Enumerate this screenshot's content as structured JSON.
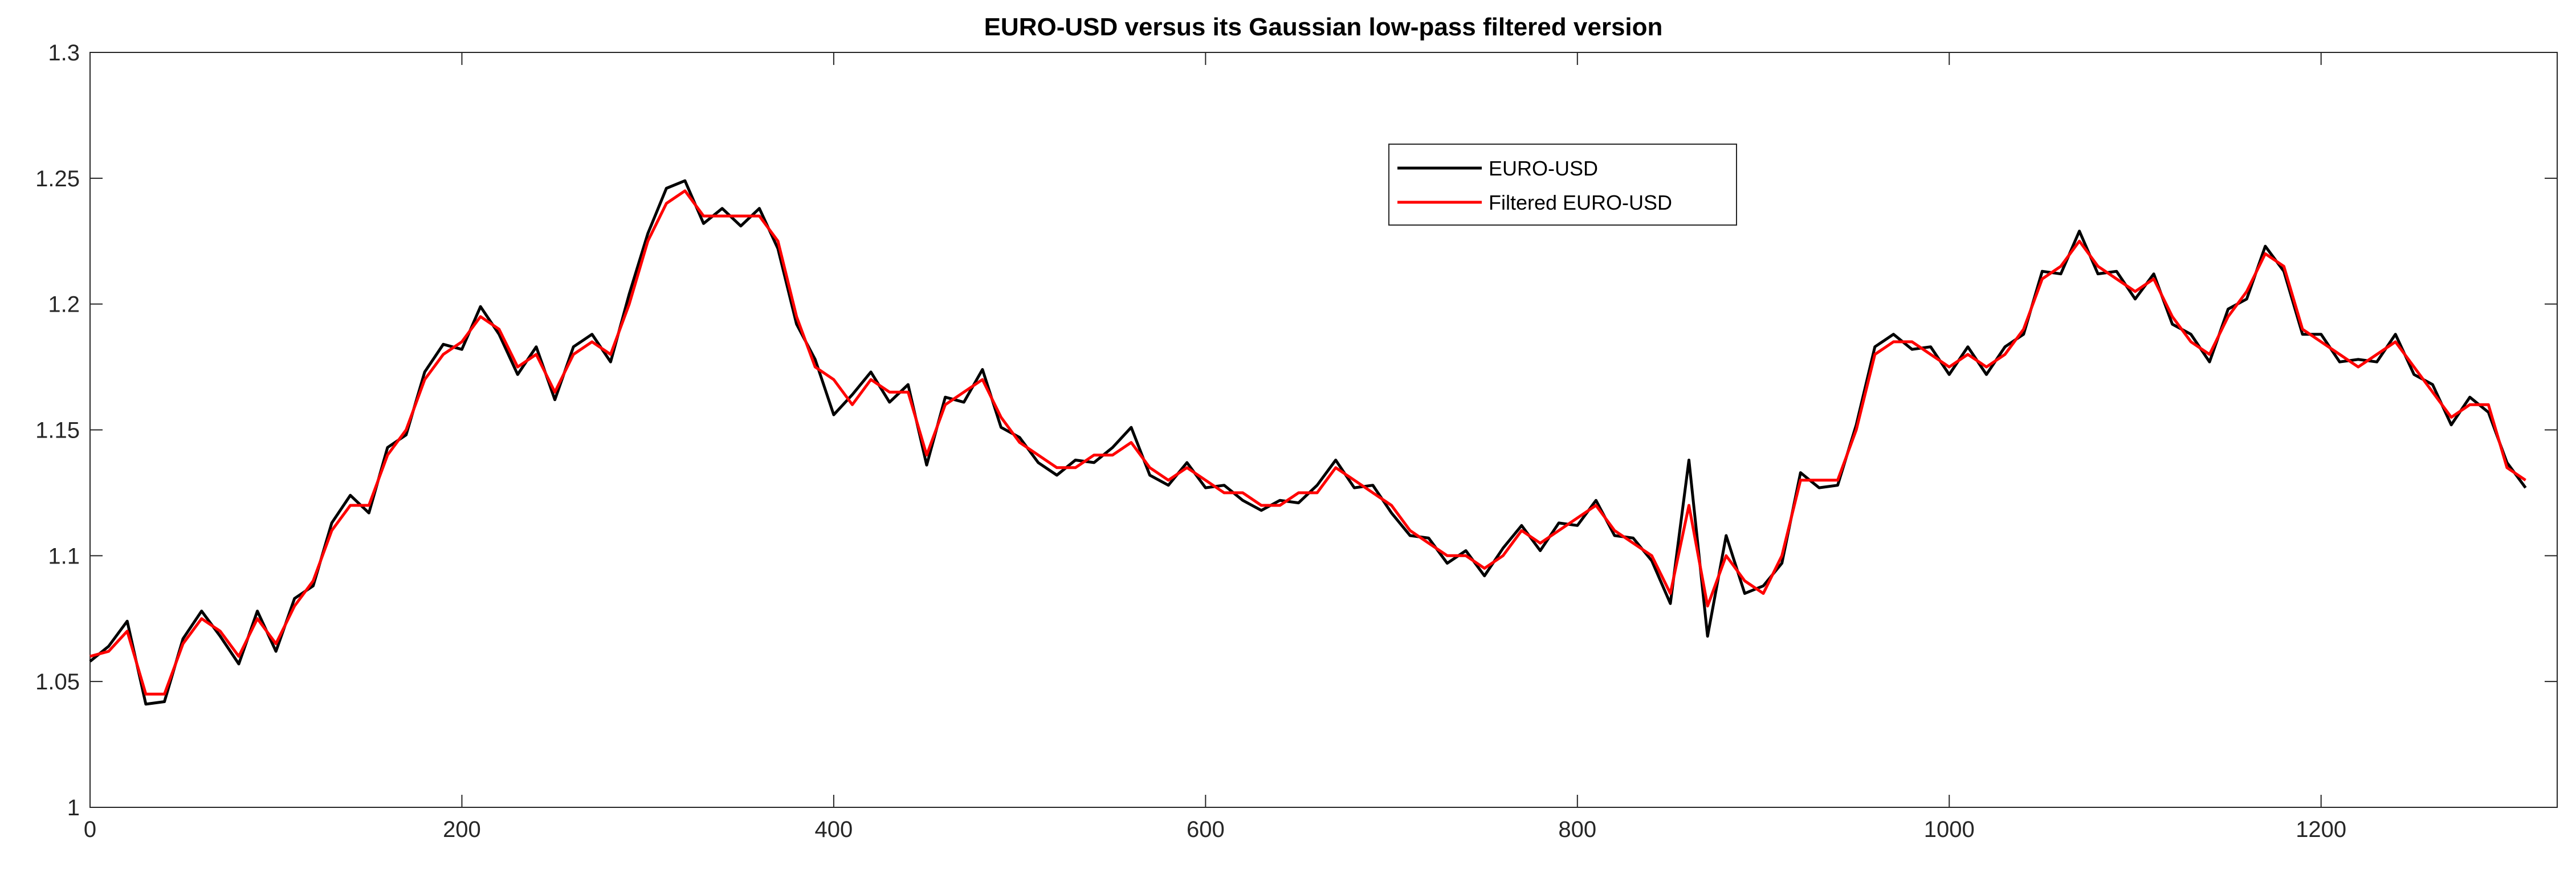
{
  "chart_data": {
    "type": "line",
    "title": "EURO-USD versus its Gaussian low-pass filtered version",
    "x": [
      0,
      10,
      20,
      30,
      40,
      50,
      60,
      70,
      80,
      90,
      100,
      110,
      120,
      130,
      140,
      150,
      160,
      170,
      180,
      190,
      200,
      210,
      220,
      230,
      240,
      250,
      260,
      270,
      280,
      290,
      300,
      310,
      320,
      330,
      340,
      350,
      360,
      370,
      380,
      390,
      400,
      410,
      420,
      430,
      440,
      450,
      460,
      470,
      480,
      490,
      500,
      510,
      520,
      530,
      540,
      550,
      560,
      570,
      580,
      590,
      600,
      610,
      620,
      630,
      640,
      650,
      660,
      670,
      680,
      690,
      700,
      710,
      720,
      730,
      740,
      750,
      760,
      770,
      780,
      790,
      800,
      810,
      820,
      830,
      840,
      850,
      860,
      870,
      880,
      890,
      900,
      910,
      920,
      930,
      940,
      950,
      960,
      970,
      980,
      990,
      1000,
      1010,
      1020,
      1030,
      1040,
      1050,
      1060,
      1070,
      1080,
      1090,
      1100,
      1110,
      1120,
      1130,
      1140,
      1150,
      1160,
      1170,
      1180,
      1190,
      1200,
      1210,
      1220,
      1230,
      1240,
      1250,
      1260,
      1270,
      1280,
      1290,
      1300,
      1310
    ],
    "series": [
      {
        "name": "EURO-USD",
        "color": "#000000",
        "values": [
          1.058,
          1.064,
          1.074,
          1.041,
          1.042,
          1.067,
          1.078,
          1.068,
          1.057,
          1.078,
          1.062,
          1.083,
          1.088,
          1.113,
          1.124,
          1.117,
          1.143,
          1.148,
          1.173,
          1.184,
          1.182,
          1.199,
          1.188,
          1.172,
          1.183,
          1.162,
          1.183,
          1.188,
          1.177,
          1.204,
          1.228,
          1.246,
          1.249,
          1.232,
          1.238,
          1.231,
          1.238,
          1.222,
          1.192,
          1.178,
          1.156,
          1.164,
          1.173,
          1.161,
          1.168,
          1.136,
          1.163,
          1.161,
          1.174,
          1.151,
          1.147,
          1.137,
          1.132,
          1.138,
          1.137,
          1.143,
          1.151,
          1.132,
          1.128,
          1.137,
          1.127,
          1.128,
          1.122,
          1.118,
          1.122,
          1.121,
          1.128,
          1.138,
          1.127,
          1.128,
          1.117,
          1.108,
          1.107,
          1.097,
          1.102,
          1.092,
          1.103,
          1.112,
          1.102,
          1.113,
          1.112,
          1.122,
          1.108,
          1.107,
          1.098,
          1.081,
          1.138,
          1.068,
          1.108,
          1.085,
          1.088,
          1.097,
          1.133,
          1.127,
          1.128,
          1.152,
          1.183,
          1.188,
          1.182,
          1.183,
          1.172,
          1.183,
          1.172,
          1.183,
          1.188,
          1.213,
          1.212,
          1.229,
          1.212,
          1.213,
          1.202,
          1.212,
          1.192,
          1.188,
          1.177,
          1.198,
          1.202,
          1.223,
          1.213,
          1.188,
          1.188,
          1.177,
          1.178,
          1.177,
          1.188,
          1.172,
          1.168,
          1.152,
          1.163,
          1.157,
          1.137,
          1.127
        ]
      },
      {
        "name": "Filtered EURO-USD",
        "color": "#ff0000",
        "values": [
          1.06,
          1.062,
          1.07,
          1.045,
          1.045,
          1.065,
          1.075,
          1.07,
          1.06,
          1.075,
          1.065,
          1.08,
          1.09,
          1.11,
          1.12,
          1.12,
          1.14,
          1.15,
          1.17,
          1.18,
          1.185,
          1.195,
          1.19,
          1.175,
          1.18,
          1.165,
          1.18,
          1.185,
          1.18,
          1.2,
          1.225,
          1.24,
          1.245,
          1.235,
          1.235,
          1.235,
          1.235,
          1.225,
          1.195,
          1.175,
          1.17,
          1.16,
          1.17,
          1.165,
          1.165,
          1.14,
          1.16,
          1.165,
          1.17,
          1.155,
          1.145,
          1.14,
          1.135,
          1.135,
          1.14,
          1.14,
          1.145,
          1.135,
          1.13,
          1.135,
          1.13,
          1.125,
          1.125,
          1.12,
          1.12,
          1.125,
          1.125,
          1.135,
          1.13,
          1.125,
          1.12,
          1.11,
          1.105,
          1.1,
          1.1,
          1.095,
          1.1,
          1.11,
          1.105,
          1.11,
          1.115,
          1.12,
          1.11,
          1.105,
          1.1,
          1.085,
          1.12,
          1.08,
          1.1,
          1.09,
          1.085,
          1.1,
          1.13,
          1.13,
          1.13,
          1.15,
          1.18,
          1.185,
          1.185,
          1.18,
          1.175,
          1.18,
          1.175,
          1.18,
          1.19,
          1.21,
          1.215,
          1.225,
          1.215,
          1.21,
          1.205,
          1.21,
          1.195,
          1.185,
          1.18,
          1.195,
          1.205,
          1.22,
          1.215,
          1.19,
          1.185,
          1.18,
          1.175,
          1.18,
          1.185,
          1.175,
          1.165,
          1.155,
          1.16,
          1.16,
          1.135,
          1.13
        ]
      }
    ],
    "xlim": [
      0,
      1327
    ],
    "xticks": [
      0,
      200,
      400,
      600,
      800,
      1000,
      1200
    ],
    "ylim": [
      1,
      1.3
    ],
    "yticks": [
      1,
      1.05,
      1.1,
      1.15,
      1.2,
      1.25,
      1.3
    ],
    "grid": false
  }
}
